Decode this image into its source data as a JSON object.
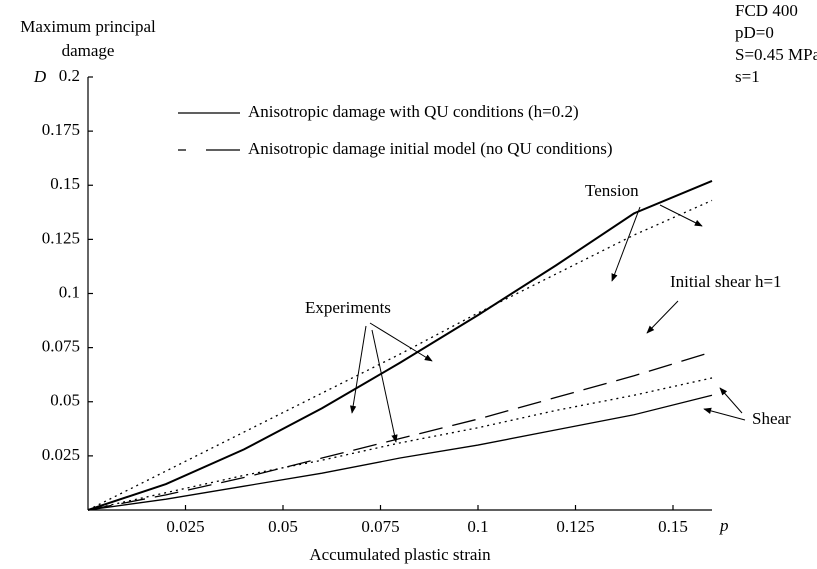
{
  "chart_data": {
    "type": "line",
    "y_label": [
      "Maximum principal",
      "damage"
    ],
    "y_symbol": "D",
    "x_label": "Accumulated plastic strain",
    "x_symbol": "p",
    "info": [
      "FCD 400",
      "pD=0",
      "S=0.45 MPa",
      "s=1"
    ],
    "legend": [
      {
        "label": "Anisotropic damage with QU conditions (h=0.2)",
        "style": "solid"
      },
      {
        "label": "Anisotropic damage initial model (no QU conditions)",
        "style": "dashed"
      }
    ],
    "annotations": [
      "Tension",
      "Experiments",
      "Initial shear h=1",
      "Shear"
    ],
    "x": [
      0,
      0.02,
      0.04,
      0.06,
      0.08,
      0.1,
      0.12,
      0.14,
      0.16
    ],
    "series": [
      {
        "style": "solid-thick",
        "color": "#000000",
        "values": [
          0,
          0.012,
          0.028,
          0.047,
          0.068,
          0.09,
          0.113,
          0.137,
          0.152
        ]
      },
      {
        "style": "dotted",
        "color": "#000000",
        "values": [
          0,
          0.018,
          0.036,
          0.054,
          0.072,
          0.091,
          0.109,
          0.127,
          0.143
        ]
      },
      {
        "style": "dashed",
        "color": "#000000",
        "values": [
          0,
          0.007,
          0.015,
          0.024,
          0.033,
          0.042,
          0.052,
          0.062,
          0.073
        ]
      },
      {
        "style": "dotted",
        "color": "#000000",
        "values": [
          0,
          0.008,
          0.016,
          0.023,
          0.031,
          0.038,
          0.046,
          0.053,
          0.061
        ]
      },
      {
        "style": "solid",
        "color": "#000000",
        "values": [
          0,
          0.005,
          0.011,
          0.017,
          0.024,
          0.03,
          0.037,
          0.044,
          0.053
        ]
      }
    ],
    "xlim": [
      0,
      0.16
    ],
    "ylim": [
      0,
      0.2
    ],
    "xticks": [
      0.025,
      0.05,
      0.075,
      0.1,
      0.125,
      0.15
    ],
    "yticks": [
      0.025,
      0.05,
      0.075,
      0.1,
      0.125,
      0.15,
      0.175,
      0.2
    ]
  }
}
